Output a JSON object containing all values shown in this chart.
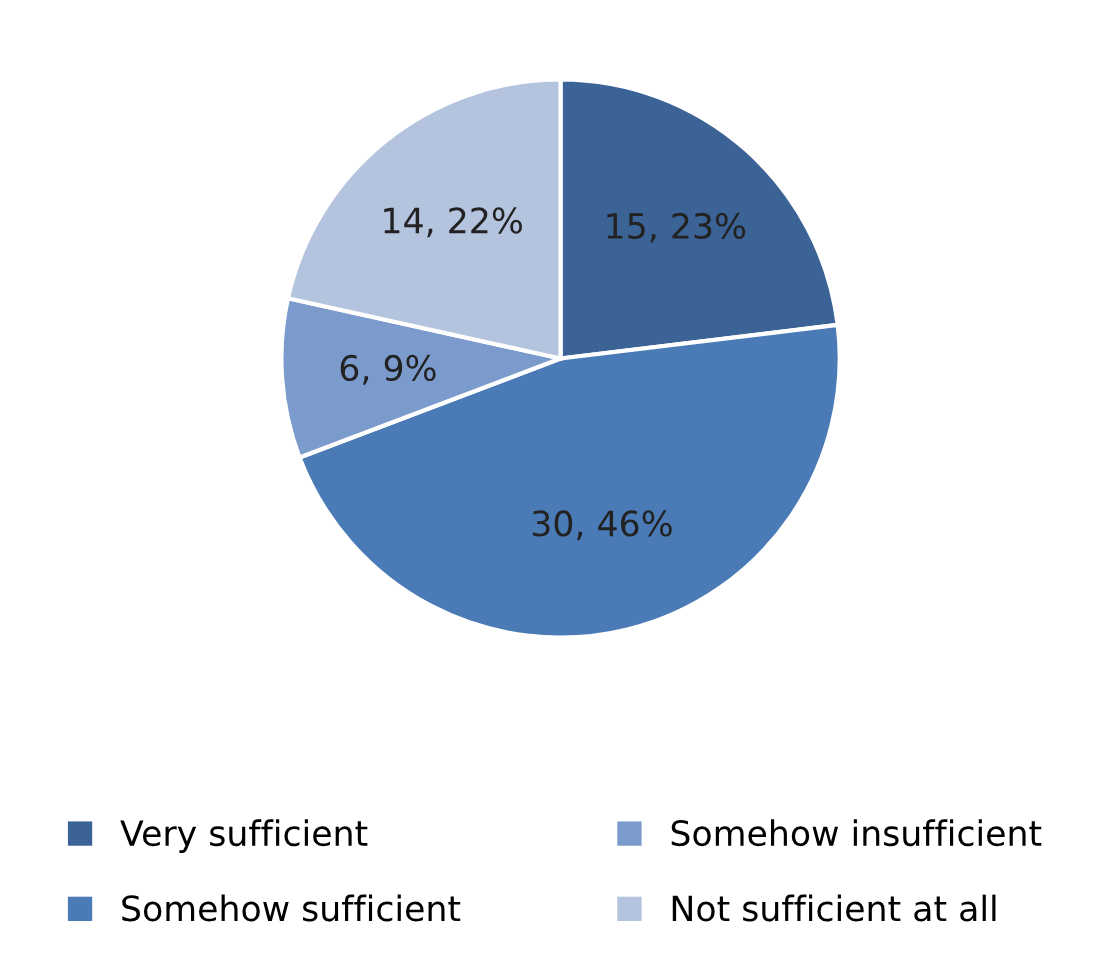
{
  "chart_data": {
    "type": "pie",
    "categories": [
      "Very sufficient",
      "Somehow sufficient",
      "Somehow insufficient",
      "Not sufficient at all"
    ],
    "values": [
      15,
      30,
      6,
      14
    ],
    "value_labels": [
      "15, 23%",
      "30, 46%",
      "6, 9%",
      "14, 22%"
    ],
    "colors": [
      "#3c6396",
      "#4a7bb7",
      "#7b9bcc",
      "#b5c4de"
    ],
    "legend": "bottom"
  }
}
